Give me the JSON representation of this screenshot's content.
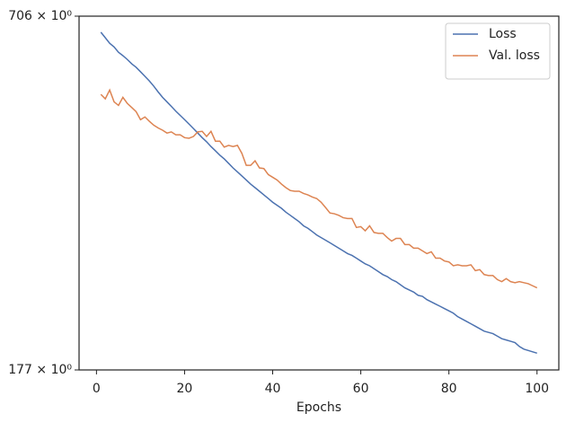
{
  "chart_data": {
    "type": "line",
    "xlabel": "Epochs",
    "yscale": "log",
    "legend": "upper right",
    "x": [
      1,
      2,
      3,
      4,
      5,
      6,
      7,
      8,
      9,
      10,
      11,
      12,
      13,
      14,
      15,
      16,
      17,
      18,
      19,
      20,
      21,
      22,
      23,
      24,
      25,
      26,
      27,
      28,
      29,
      30,
      31,
      32,
      33,
      34,
      35,
      36,
      37,
      38,
      39,
      40,
      41,
      42,
      43,
      44,
      45,
      46,
      47,
      48,
      49,
      50,
      51,
      52,
      53,
      54,
      55,
      56,
      57,
      58,
      59,
      60,
      61,
      62,
      63,
      64,
      65,
      66,
      67,
      68,
      69,
      70,
      71,
      72,
      73,
      74,
      75,
      76,
      77,
      78,
      79,
      80,
      81,
      82,
      83,
      84,
      85,
      86,
      87,
      88,
      89,
      90,
      91,
      92,
      93,
      94,
      95,
      96,
      97,
      98,
      99,
      100
    ],
    "series": [
      {
        "name": "Loss",
        "color": "#4c72b0",
        "values": [
          663,
          649,
          635,
          626,
          613,
          605,
          596,
          586,
          578,
          568,
          558,
          548,
          537,
          525,
          514,
          505,
          496,
          487,
          479,
          471,
          463,
          455,
          447,
          439,
          432,
          424,
          417,
          410,
          404,
          397,
          390,
          384,
          378,
          372,
          366,
          361,
          356,
          351,
          346,
          341,
          337,
          333,
          328,
          324,
          320,
          316,
          311,
          308,
          304,
          300,
          297,
          294,
          291,
          288,
          285,
          282,
          279,
          277,
          274,
          271,
          268,
          266,
          263,
          260,
          257,
          255,
          252,
          250,
          247,
          244,
          242,
          240,
          237,
          236,
          233,
          231,
          229,
          227,
          225,
          223,
          221,
          218,
          216,
          214,
          212,
          210,
          208,
          206,
          205,
          204,
          202,
          200,
          199,
          198,
          197,
          194,
          192,
          191,
          190,
          189
        ]
      },
      {
        "name": "Val. loss",
        "color": "#dd8452",
        "values": [
          520,
          511,
          529,
          505,
          498,
          514,
          502,
          494,
          486,
          471,
          476,
          468,
          461,
          456,
          452,
          447,
          449,
          444,
          444,
          439,
          438,
          441,
          449,
          450,
          441,
          450,
          433,
          433,
          423,
          426,
          424,
          426,
          413,
          394,
          394,
          401,
          390,
          389,
          380,
          376,
          372,
          366,
          361,
          357,
          356,
          356,
          353,
          351,
          348,
          346,
          341,
          334,
          327,
          326,
          324,
          321,
          320,
          320,
          309,
          310,
          305,
          311,
          303,
          302,
          302,
          297,
          293,
          296,
          296,
          289,
          289,
          285,
          285,
          282,
          279,
          281,
          274,
          274,
          271,
          270,
          266,
          267,
          266,
          266,
          267,
          261,
          262,
          257,
          256,
          256,
          252,
          250,
          253,
          250,
          249,
          250,
          249,
          248,
          246,
          244
        ]
      }
    ],
    "xlim": [
      -3.95,
      104.95
    ],
    "xticks": [
      0,
      20,
      40,
      60,
      80,
      100
    ],
    "ylim": [
      177,
      706
    ],
    "yticks": [
      {
        "value": 177,
        "label": "177 × 10⁰"
      },
      {
        "value": 706,
        "label": "706 × 10⁰"
      }
    ]
  }
}
